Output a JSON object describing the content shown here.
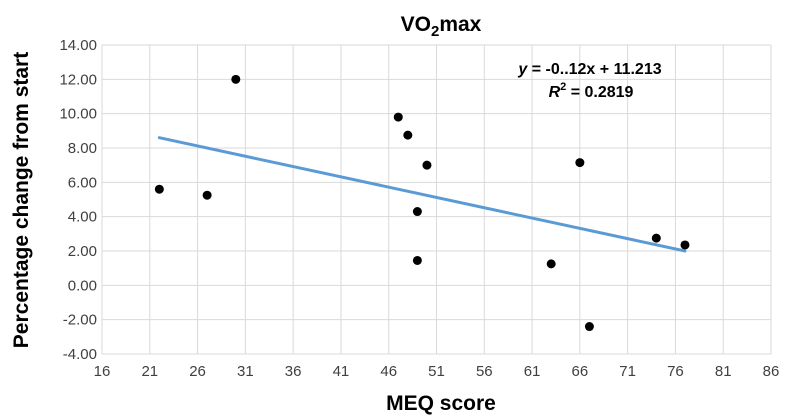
{
  "chart_data": {
    "type": "scatter",
    "title_prefix": "VO",
    "title_subscript": "2",
    "title_suffix": "max",
    "xlabel": "MEQ score",
    "ylabel": "Percentage change from start",
    "xlim": [
      16,
      86
    ],
    "ylim": [
      -4,
      14
    ],
    "x_ticks": [
      "16",
      "21",
      "26",
      "31",
      "36",
      "41",
      "46",
      "51",
      "56",
      "61",
      "66",
      "71",
      "76",
      "81",
      "86"
    ],
    "y_ticks": [
      "-4.00",
      "-2.00",
      "0.00",
      "2.00",
      "4.00",
      "6.00",
      "8.00",
      "10.00",
      "12.00",
      "14.00"
    ],
    "grid": true,
    "points": [
      {
        "x": 22,
        "y": 5.6
      },
      {
        "x": 27,
        "y": 5.25
      },
      {
        "x": 30,
        "y": 12.0
      },
      {
        "x": 47,
        "y": 9.8
      },
      {
        "x": 48,
        "y": 8.75
      },
      {
        "x": 50,
        "y": 7.0
      },
      {
        "x": 49,
        "y": 4.3
      },
      {
        "x": 49,
        "y": 1.45
      },
      {
        "x": 63,
        "y": 1.25
      },
      {
        "x": 66,
        "y": 7.15
      },
      {
        "x": 67,
        "y": -2.4
      },
      {
        "x": 74,
        "y": 2.75
      },
      {
        "x": 77,
        "y": 2.35
      }
    ],
    "trendline": {
      "x": [
        22,
        77
      ],
      "y": [
        8.6,
        2.0
      ],
      "color": "#5b9bd5"
    },
    "equation": {
      "y_var": "y",
      "equation_rest": " = -0..12x + 11.213",
      "r_var": "R",
      "r_sup": "2",
      "r_rest": " = 0.2819"
    },
    "colors": {
      "point": "#000000",
      "grid": "#d9d9d9",
      "trend": "#5b9bd5"
    }
  }
}
